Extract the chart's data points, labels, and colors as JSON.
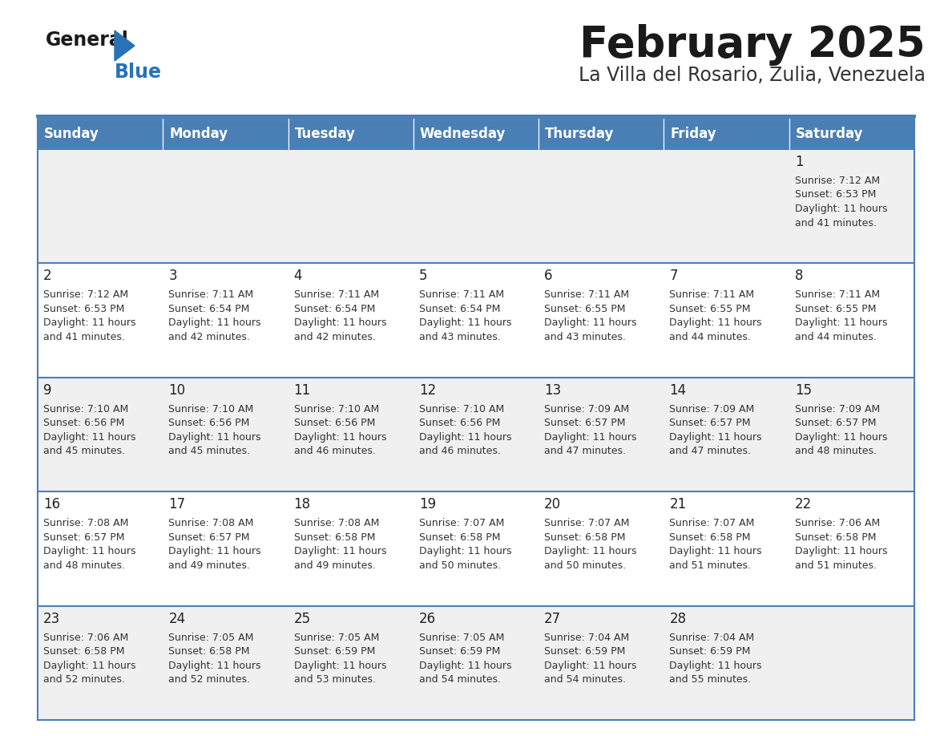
{
  "title": "February 2025",
  "subtitle": "La Villa del Rosario, Zulia, Venezuela",
  "days_of_week": [
    "Sunday",
    "Monday",
    "Tuesday",
    "Wednesday",
    "Thursday",
    "Friday",
    "Saturday"
  ],
  "header_bg_color": "#4a7fb5",
  "header_text_color": "#ffffff",
  "row_bg_colors": [
    "#f0f0f0",
    "#ffffff"
  ],
  "border_color": "#4a7fb5",
  "title_color": "#1a1a1a",
  "subtitle_color": "#333333",
  "day_number_color": "#222222",
  "info_text_color": "#333333",
  "logo_general_color": "#1a1a1a",
  "logo_blue_color": "#2673b8",
  "logo_triangle_color": "#2673b8",
  "calendar_data": [
    [
      null,
      null,
      null,
      null,
      null,
      null,
      {
        "day": "1",
        "sunrise": "7:12 AM",
        "sunset": "6:53 PM",
        "daylight_line1": "Daylight: 11 hours",
        "daylight_line2": "and 41 minutes."
      }
    ],
    [
      {
        "day": "2",
        "sunrise": "7:12 AM",
        "sunset": "6:53 PM",
        "daylight_line1": "Daylight: 11 hours",
        "daylight_line2": "and 41 minutes."
      },
      {
        "day": "3",
        "sunrise": "7:11 AM",
        "sunset": "6:54 PM",
        "daylight_line1": "Daylight: 11 hours",
        "daylight_line2": "and 42 minutes."
      },
      {
        "day": "4",
        "sunrise": "7:11 AM",
        "sunset": "6:54 PM",
        "daylight_line1": "Daylight: 11 hours",
        "daylight_line2": "and 42 minutes."
      },
      {
        "day": "5",
        "sunrise": "7:11 AM",
        "sunset": "6:54 PM",
        "daylight_line1": "Daylight: 11 hours",
        "daylight_line2": "and 43 minutes."
      },
      {
        "day": "6",
        "sunrise": "7:11 AM",
        "sunset": "6:55 PM",
        "daylight_line1": "Daylight: 11 hours",
        "daylight_line2": "and 43 minutes."
      },
      {
        "day": "7",
        "sunrise": "7:11 AM",
        "sunset": "6:55 PM",
        "daylight_line1": "Daylight: 11 hours",
        "daylight_line2": "and 44 minutes."
      },
      {
        "day": "8",
        "sunrise": "7:11 AM",
        "sunset": "6:55 PM",
        "daylight_line1": "Daylight: 11 hours",
        "daylight_line2": "and 44 minutes."
      }
    ],
    [
      {
        "day": "9",
        "sunrise": "7:10 AM",
        "sunset": "6:56 PM",
        "daylight_line1": "Daylight: 11 hours",
        "daylight_line2": "and 45 minutes."
      },
      {
        "day": "10",
        "sunrise": "7:10 AM",
        "sunset": "6:56 PM",
        "daylight_line1": "Daylight: 11 hours",
        "daylight_line2": "and 45 minutes."
      },
      {
        "day": "11",
        "sunrise": "7:10 AM",
        "sunset": "6:56 PM",
        "daylight_line1": "Daylight: 11 hours",
        "daylight_line2": "and 46 minutes."
      },
      {
        "day": "12",
        "sunrise": "7:10 AM",
        "sunset": "6:56 PM",
        "daylight_line1": "Daylight: 11 hours",
        "daylight_line2": "and 46 minutes."
      },
      {
        "day": "13",
        "sunrise": "7:09 AM",
        "sunset": "6:57 PM",
        "daylight_line1": "Daylight: 11 hours",
        "daylight_line2": "and 47 minutes."
      },
      {
        "day": "14",
        "sunrise": "7:09 AM",
        "sunset": "6:57 PM",
        "daylight_line1": "Daylight: 11 hours",
        "daylight_line2": "and 47 minutes."
      },
      {
        "day": "15",
        "sunrise": "7:09 AM",
        "sunset": "6:57 PM",
        "daylight_line1": "Daylight: 11 hours",
        "daylight_line2": "and 48 minutes."
      }
    ],
    [
      {
        "day": "16",
        "sunrise": "7:08 AM",
        "sunset": "6:57 PM",
        "daylight_line1": "Daylight: 11 hours",
        "daylight_line2": "and 48 minutes."
      },
      {
        "day": "17",
        "sunrise": "7:08 AM",
        "sunset": "6:57 PM",
        "daylight_line1": "Daylight: 11 hours",
        "daylight_line2": "and 49 minutes."
      },
      {
        "day": "18",
        "sunrise": "7:08 AM",
        "sunset": "6:58 PM",
        "daylight_line1": "Daylight: 11 hours",
        "daylight_line2": "and 49 minutes."
      },
      {
        "day": "19",
        "sunrise": "7:07 AM",
        "sunset": "6:58 PM",
        "daylight_line1": "Daylight: 11 hours",
        "daylight_line2": "and 50 minutes."
      },
      {
        "day": "20",
        "sunrise": "7:07 AM",
        "sunset": "6:58 PM",
        "daylight_line1": "Daylight: 11 hours",
        "daylight_line2": "and 50 minutes."
      },
      {
        "day": "21",
        "sunrise": "7:07 AM",
        "sunset": "6:58 PM",
        "daylight_line1": "Daylight: 11 hours",
        "daylight_line2": "and 51 minutes."
      },
      {
        "day": "22",
        "sunrise": "7:06 AM",
        "sunset": "6:58 PM",
        "daylight_line1": "Daylight: 11 hours",
        "daylight_line2": "and 51 minutes."
      }
    ],
    [
      {
        "day": "23",
        "sunrise": "7:06 AM",
        "sunset": "6:58 PM",
        "daylight_line1": "Daylight: 11 hours",
        "daylight_line2": "and 52 minutes."
      },
      {
        "day": "24",
        "sunrise": "7:05 AM",
        "sunset": "6:58 PM",
        "daylight_line1": "Daylight: 11 hours",
        "daylight_line2": "and 52 minutes."
      },
      {
        "day": "25",
        "sunrise": "7:05 AM",
        "sunset": "6:59 PM",
        "daylight_line1": "Daylight: 11 hours",
        "daylight_line2": "and 53 minutes."
      },
      {
        "day": "26",
        "sunrise": "7:05 AM",
        "sunset": "6:59 PM",
        "daylight_line1": "Daylight: 11 hours",
        "daylight_line2": "and 54 minutes."
      },
      {
        "day": "27",
        "sunrise": "7:04 AM",
        "sunset": "6:59 PM",
        "daylight_line1": "Daylight: 11 hours",
        "daylight_line2": "and 54 minutes."
      },
      {
        "day": "28",
        "sunrise": "7:04 AM",
        "sunset": "6:59 PM",
        "daylight_line1": "Daylight: 11 hours",
        "daylight_line2": "and 55 minutes."
      },
      null
    ]
  ]
}
